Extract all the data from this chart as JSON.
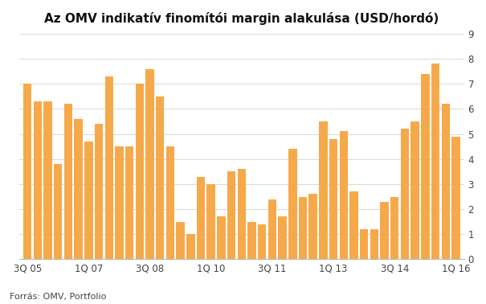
{
  "title": "Az OMV indikatív finomítói margin alakulása (USD/hordó)",
  "source": "Forrás: OMV, Portfolio",
  "bar_color": "#F6A94A",
  "background_color": "#ffffff",
  "ylim": [
    0,
    9
  ],
  "yticks": [
    0,
    1,
    2,
    3,
    4,
    5,
    6,
    7,
    8,
    9
  ],
  "values": [
    7.0,
    6.3,
    6.3,
    3.8,
    6.2,
    5.6,
    4.7,
    5.4,
    7.3,
    4.5,
    4.5,
    7.0,
    7.6,
    6.5,
    4.5,
    1.5,
    1.0,
    3.3,
    3.0,
    1.7,
    3.5,
    3.6,
    1.5,
    1.4,
    2.4,
    1.7,
    4.4,
    2.5,
    2.6,
    5.5,
    4.8,
    5.1,
    2.7,
    1.2,
    1.2,
    2.3,
    2.5,
    5.2,
    5.5,
    7.4,
    7.8,
    6.2,
    4.9
  ],
  "xtick_positions": [
    0,
    6,
    12,
    18,
    24,
    30,
    36,
    42
  ],
  "xtick_labels": [
    "3Q 05",
    "1Q 07",
    "3Q 08",
    "1Q 10",
    "3Q 11",
    "1Q 13",
    "3Q 14",
    "1Q 16"
  ]
}
